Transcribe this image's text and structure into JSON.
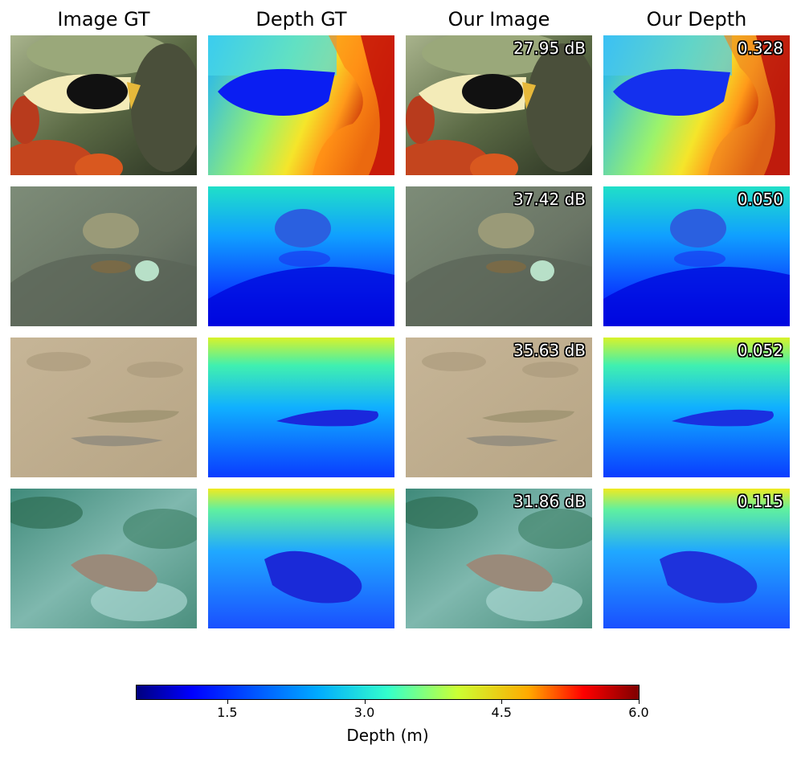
{
  "columns": [
    "Image GT",
    "Depth GT",
    "Our Image",
    "Our Depth"
  ],
  "rows": [
    {
      "psnr": "27.95 dB",
      "depth_error": "0.328"
    },
    {
      "psnr": "37.42 dB",
      "depth_error": "0.050"
    },
    {
      "psnr": "35.63 dB",
      "depth_error": "0.052"
    },
    {
      "psnr": "31.86 dB",
      "depth_error": "0.115"
    }
  ],
  "colorbar": {
    "label": "Depth (m)",
    "colormap": "jet",
    "range": [
      0.5,
      6.0
    ],
    "ticks": [
      "1.5",
      "3.0",
      "4.5",
      "6.0"
    ],
    "tick_values": [
      1.5,
      3.0,
      4.5,
      6.0
    ]
  },
  "colors": {
    "jet_stops": [
      "#00007f",
      "#0000ff",
      "#00aaff",
      "#33ffcc",
      "#ccff33",
      "#ffaa00",
      "#ff0000",
      "#7f0000"
    ]
  }
}
